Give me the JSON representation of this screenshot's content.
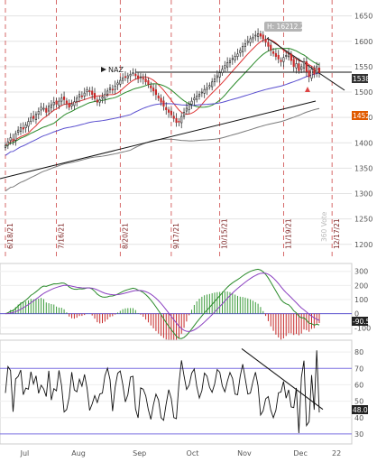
{
  "chart_data": [
    {
      "type": "candlestick",
      "symbol": "NAZ",
      "annotation_high": "H: 16212.23",
      "last_price": "1538",
      "last_price_full": "15380",
      "support_value": "1452",
      "y_ticks": [
        1200,
        1250,
        1300,
        1350,
        1400,
        1450,
        1500,
        1550,
        1600,
        1650
      ],
      "ylim": [
        11800,
        16600
      ],
      "vertical_date_labels": [
        {
          "text": "6/18/21",
          "x_index": 0
        },
        {
          "text": "7/16/21",
          "x_index": 20
        },
        {
          "text": "8/20/21",
          "x_index": 45
        },
        {
          "text": "9/17/21",
          "x_index": 65
        },
        {
          "text": "10/15/21",
          "x_index": 84
        },
        {
          "text": "11/19/21",
          "x_index": 109
        },
        {
          "text": "12/17/21",
          "x_index": 128
        }
      ],
      "watermark": "360 Vote",
      "candles_close": [
        13950,
        14020,
        14100,
        14050,
        14180,
        14250,
        14300,
        14270,
        14350,
        14420,
        14500,
        14480,
        14560,
        14620,
        14700,
        14680,
        14600,
        14720,
        14750,
        14800,
        14760,
        14820,
        14880,
        14850,
        14780,
        14700,
        14760,
        14810,
        14880,
        14950,
        14920,
        14980,
        15050,
        15020,
        14950,
        14870,
        14800,
        14850,
        14900,
        14960,
        15020,
        15080,
        15050,
        15120,
        15180,
        15230,
        15280,
        15300,
        15320,
        15350,
        15380,
        15320,
        15260,
        15300,
        15260,
        15200,
        15150,
        15080,
        15020,
        14950,
        14880,
        14800,
        14720,
        14650,
        14600,
        14550,
        14480,
        14400,
        14420,
        14520,
        14600,
        14680,
        14760,
        14820,
        14880,
        14920,
        14960,
        15000,
        15050,
        15080,
        15130,
        15200,
        15260,
        15320,
        15380,
        15450,
        15520,
        15580,
        15620,
        15660,
        15700,
        15750,
        15820,
        15900,
        15950,
        16000,
        16050,
        16080,
        16120,
        16150,
        16100,
        16050,
        15980,
        15900,
        15820,
        15760,
        15700,
        15650,
        15600,
        15680,
        15720,
        15750,
        15620,
        15500,
        15560,
        15420,
        15500,
        15600,
        15400,
        15300,
        15450,
        15350,
        15500,
        15380
      ]
    },
    {
      "type": "line",
      "indicator": "MACD",
      "value_label": "-90.5",
      "y_ticks": [
        300,
        200,
        100,
        0,
        -100
      ]
    },
    {
      "type": "line",
      "indicator": "RSI",
      "value_label": "48.06",
      "y_ticks": [
        80,
        70,
        60,
        50,
        40,
        30
      ],
      "x_labels": [
        "Jul",
        "Aug",
        "Sep",
        "Oct",
        "Nov",
        "Dec",
        "22"
      ]
    }
  ]
}
